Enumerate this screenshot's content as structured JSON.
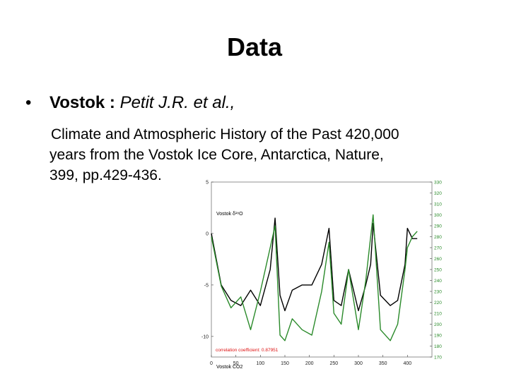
{
  "slide": {
    "title": "Data",
    "bullet": {
      "symbol": "•",
      "label": "Vostok",
      "separator": " : ",
      "citation": "Petit J.R. et al.,"
    },
    "reference_lines": [
      "Climate and Atmospheric History of the Past 420,000",
      "years from the Vostok Ice Core, Antarctica, Nature,",
      "399, pp.429-436."
    ]
  },
  "chart_data": {
    "type": "line",
    "x": [
      0,
      20,
      40,
      60,
      80,
      100,
      120,
      130,
      140,
      150,
      165,
      185,
      205,
      225,
      240,
      250,
      265,
      280,
      300,
      315,
      325,
      330,
      345,
      365,
      380,
      395,
      400,
      410,
      420
    ],
    "xticks": [
      "0",
      "50",
      "100",
      "150",
      "200",
      "250",
      "300",
      "350",
      "400"
    ],
    "xlim": [
      0,
      450
    ],
    "series": [
      {
        "name": "Vostok δ¹⁸O",
        "color": "#000000",
        "axis": "left",
        "values": [
          0,
          -5,
          -6.5,
          -7,
          -5.5,
          -7,
          -3.5,
          1.5,
          -6,
          -7.5,
          -5.5,
          -5,
          -5,
          -3,
          0.5,
          -6.5,
          -7,
          -3.5,
          -7.5,
          -5,
          -3,
          1,
          -6,
          -7,
          -6.5,
          -3,
          0.5,
          -0.5,
          -0.5
        ]
      },
      {
        "name": "Vostok CO2",
        "color": "#2a8a2a",
        "axis": "right",
        "values": [
          280,
          235,
          215,
          225,
          195,
          230,
          270,
          290,
          190,
          185,
          205,
          195,
          190,
          230,
          275,
          210,
          200,
          250,
          195,
          240,
          280,
          300,
          195,
          185,
          200,
          250,
          270,
          280,
          285
        ]
      }
    ],
    "ylim_left": [
      -12,
      5
    ],
    "yticks_left": [
      "5",
      "0",
      "-5",
      "-10"
    ],
    "ylim_right": [
      170,
      330
    ],
    "yticks_right": [
      "330",
      "320",
      "310",
      "300",
      "290",
      "280",
      "270",
      "260",
      "250",
      "240",
      "230",
      "220",
      "210",
      "200",
      "190",
      "180",
      "170"
    ],
    "annotation": "correlation coefficient: 0.87951"
  }
}
